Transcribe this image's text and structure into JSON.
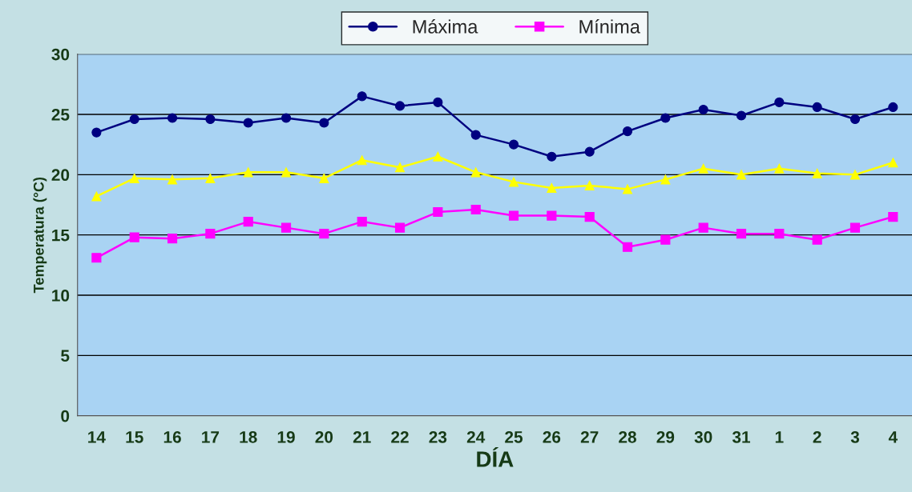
{
  "chart_data": {
    "type": "line",
    "xlabel": "DÍA",
    "ylabel": "Temperatura (°C)",
    "categories": [
      "14",
      "15",
      "16",
      "17",
      "18",
      "19",
      "20",
      "21",
      "22",
      "23",
      "24",
      "25",
      "26",
      "27",
      "28",
      "29",
      "30",
      "31",
      "1",
      "2",
      "3",
      "4"
    ],
    "series": [
      {
        "name": "Máxima",
        "color": "#000080",
        "marker": "circle",
        "values": [
          23.5,
          24.6,
          24.7,
          24.6,
          24.3,
          24.7,
          24.3,
          26.5,
          25.7,
          26.0,
          23.3,
          22.5,
          21.5,
          21.9,
          23.6,
          24.7,
          25.4,
          24.9,
          26.0,
          25.6,
          24.6,
          25.6
        ]
      },
      {
        "name": "Mínima",
        "color": "#ff00ff",
        "marker": "square",
        "values": [
          13.1,
          14.8,
          14.7,
          15.1,
          16.1,
          15.6,
          15.1,
          16.1,
          15.6,
          16.9,
          17.1,
          16.6,
          16.6,
          16.5,
          14.0,
          14.6,
          15.6,
          15.1,
          15.1,
          14.6,
          15.6,
          16.5
        ]
      },
      {
        "color": "#ffff00",
        "marker": "triangle",
        "values": [
          18.2,
          19.7,
          19.6,
          19.7,
          20.2,
          20.2,
          19.7,
          21.2,
          20.6,
          21.5,
          20.2,
          19.4,
          18.9,
          19.1,
          18.8,
          19.6,
          20.5,
          20.0,
          20.5,
          20.1,
          20.0,
          21.0
        ]
      }
    ],
    "ylim": [
      0,
      30
    ],
    "yticks": [
      0,
      5,
      10,
      15,
      20,
      25,
      30
    ],
    "grid": "y",
    "legend": "top"
  }
}
